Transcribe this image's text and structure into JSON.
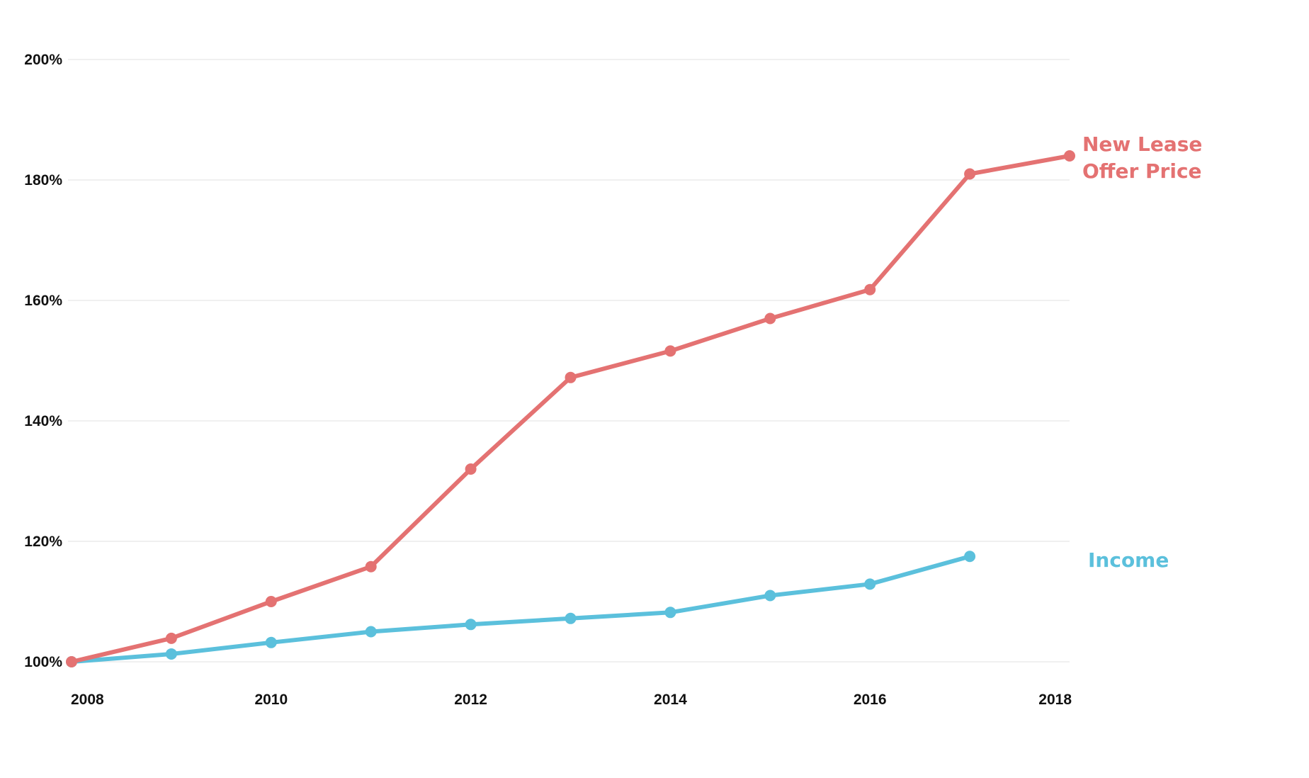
{
  "chart_data": {
    "type": "line",
    "title": "",
    "xlabel": "",
    "ylabel": "",
    "x": [
      2008,
      2009,
      2010,
      2011,
      2012,
      2013,
      2014,
      2015,
      2016,
      2017,
      2018
    ],
    "xlim": [
      2008,
      2018
    ],
    "ylim": [
      100,
      200
    ],
    "y_ticks": [
      {
        "value": 100,
        "label": "100%"
      },
      {
        "value": 120,
        "label": "120%"
      },
      {
        "value": 140,
        "label": "140%"
      },
      {
        "value": 160,
        "label": "160%"
      },
      {
        "value": 180,
        "label": "180%"
      },
      {
        "value": 200,
        "label": "200%"
      }
    ],
    "x_ticks": [
      {
        "value": 2008,
        "label": "2008"
      },
      {
        "value": 2010,
        "label": "2010"
      },
      {
        "value": 2012,
        "label": "2012"
      },
      {
        "value": 2014,
        "label": "2014"
      },
      {
        "value": 2016,
        "label": "2016"
      },
      {
        "value": 2018,
        "label": "2018"
      }
    ],
    "grid": "horizontal",
    "legend": "direct labels at right end of lines",
    "series": [
      {
        "name": "New Lease Offer Price",
        "label_lines": [
          "New Lease",
          "Offer Price"
        ],
        "color": "#e47272",
        "values": [
          100,
          103.9,
          110.0,
          115.8,
          132.0,
          147.2,
          151.6,
          157.0,
          161.8,
          181.0,
          184.0
        ]
      },
      {
        "name": "Income",
        "label_lines": [
          "Income"
        ],
        "color": "#5bc0dc",
        "values": [
          100,
          101.3,
          103.2,
          105.0,
          106.2,
          107.2,
          108.2,
          111.0,
          112.9,
          117.5,
          null
        ]
      }
    ]
  }
}
